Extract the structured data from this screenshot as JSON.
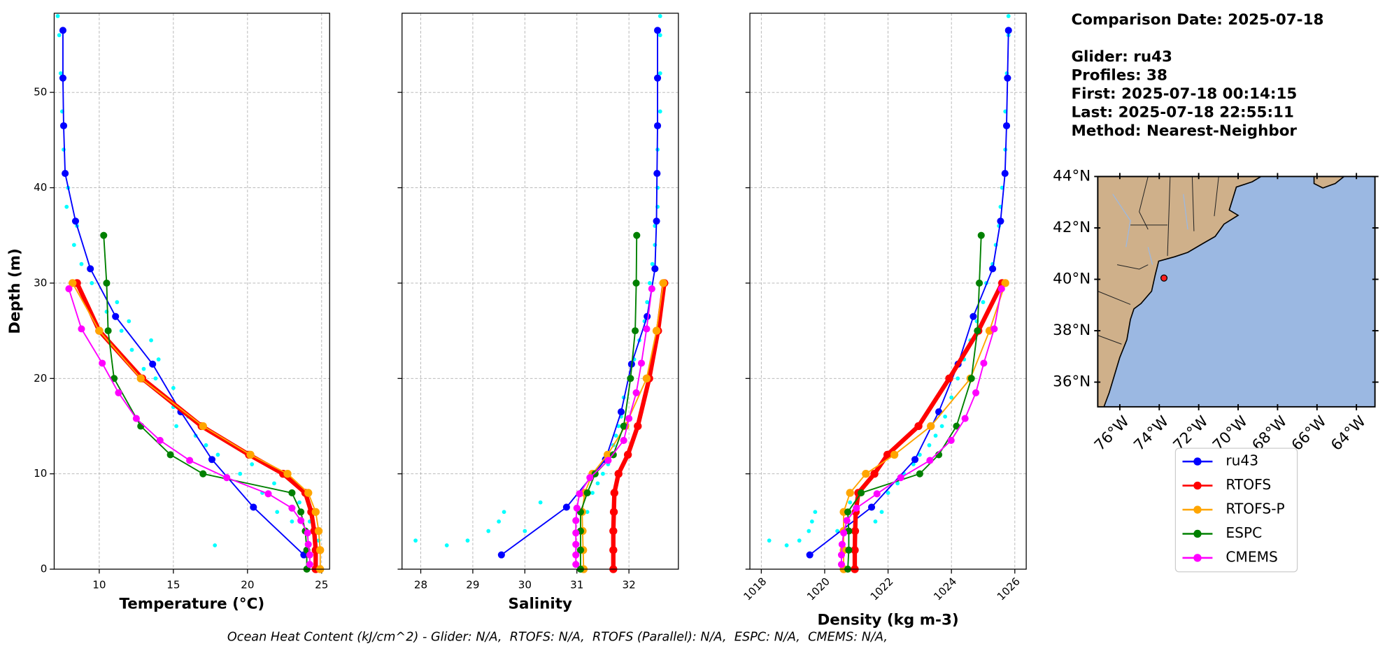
{
  "chart_data": [
    {
      "type": "line",
      "xlabel": "Temperature (°C)",
      "ylabel": "Depth (m)",
      "xlim": [
        6.96,
        25.54
      ],
      "xticks": [
        10,
        15,
        20,
        25
      ],
      "ylim": [
        58.3,
        0
      ],
      "yticks": [
        0,
        10,
        20,
        30,
        40,
        50
      ],
      "grid": true,
      "ytick_labels": true,
      "xtick_rotation": 0,
      "scatter": {
        "color": "#00ffff",
        "depths": [
          2.5,
          3,
          4,
          5,
          5,
          6,
          7,
          8,
          9,
          10,
          11,
          12,
          13,
          14,
          15,
          16,
          17,
          18,
          19,
          20,
          21,
          22,
          23,
          24,
          25,
          26,
          27,
          28,
          30,
          32,
          34,
          36,
          38,
          40,
          44,
          48,
          52,
          56,
          58
        ],
        "values": [
          17.8,
          24.8,
          24.5,
          23.0,
          24.2,
          22.0,
          23.5,
          21.0,
          21.8,
          19.5,
          20.3,
          18.0,
          17.2,
          16.5,
          15.2,
          16.0,
          15.0,
          14.5,
          15.0,
          13.8,
          13.0,
          14.0,
          12.2,
          13.5,
          11.5,
          12.0,
          10.5,
          11.2,
          9.5,
          8.8,
          8.3,
          8.5,
          7.8,
          7.9,
          7.6,
          7.5,
          7.4,
          7.3,
          7.2
        ]
      },
      "series": [
        {
          "name": "ru43",
          "color": "#0000ff",
          "linewidth": 1.5,
          "markersize": 4,
          "depths": [
            1.5,
            6.5,
            11.5,
            16.5,
            21.5,
            26.5,
            31.5,
            36.5,
            41.5,
            46.5,
            51.5,
            56.5
          ],
          "values": [
            23.8,
            20.4,
            17.6,
            15.5,
            13.6,
            11.1,
            9.4,
            8.4,
            7.7,
            7.6,
            7.55,
            7.55
          ]
        },
        {
          "name": "RTOFS",
          "color": "#ff0000",
          "linewidth": 5,
          "markersize": 4.5,
          "depths": [
            0,
            2,
            4,
            6,
            8,
            10,
            12,
            15,
            20,
            25,
            30
          ],
          "values": [
            24.6,
            24.6,
            24.5,
            24.3,
            23.9,
            22.4,
            20.1,
            16.9,
            12.9,
            10.0,
            8.5
          ]
        },
        {
          "name": "RTOFS-P",
          "color": "#ffa500",
          "linewidth": 1.5,
          "markersize": 4.5,
          "depths": [
            0,
            2,
            4,
            6,
            8,
            10,
            12,
            15,
            20,
            25,
            30
          ],
          "values": [
            24.9,
            24.9,
            24.8,
            24.6,
            24.1,
            22.7,
            20.2,
            17.0,
            12.8,
            10.0,
            8.2
          ]
        },
        {
          "name": "ESPC",
          "color": "#008000",
          "linewidth": 1.5,
          "markersize": 4,
          "depths": [
            0,
            2,
            4,
            6,
            8,
            10,
            12,
            15,
            20,
            25,
            30,
            35
          ],
          "values": [
            24.0,
            24.0,
            23.9,
            23.6,
            23.0,
            17.0,
            14.8,
            12.8,
            11.0,
            10.6,
            10.5,
            10.3
          ]
        },
        {
          "name": "CMEMS",
          "color": "#ff00ff",
          "linewidth": 1.5,
          "markersize": 4,
          "depths": [
            0.5,
            1.5,
            2.6,
            3.8,
            5.1,
            6.4,
            7.9,
            9.6,
            11.4,
            13.5,
            15.8,
            18.5,
            21.6,
            25.2,
            29.4
          ],
          "values": [
            24.2,
            24.2,
            24.1,
            24.05,
            23.6,
            23.0,
            21.4,
            18.6,
            16.1,
            14.1,
            12.5,
            11.3,
            10.2,
            8.8,
            7.95
          ]
        }
      ]
    },
    {
      "type": "line",
      "xlabel": "Salinity",
      "xlim": [
        27.64,
        32.95
      ],
      "xticks": [
        28,
        29,
        30,
        31,
        32
      ],
      "ylim": [
        58.3,
        0
      ],
      "yticks": [
        0,
        10,
        20,
        30,
        40,
        50
      ],
      "grid": true,
      "ytick_labels": false,
      "xtick_rotation": 0,
      "scatter": {
        "color": "#00ffff",
        "depths": [
          3,
          2.5,
          3,
          4,
          5,
          6,
          4,
          7,
          5,
          6,
          8,
          9,
          10,
          11,
          12,
          13,
          14,
          15,
          16,
          18,
          20,
          22,
          24,
          26,
          28,
          30,
          32,
          34,
          36,
          38,
          40,
          44,
          48,
          52,
          56,
          58
        ],
        "values": [
          27.9,
          28.5,
          28.9,
          29.3,
          29.5,
          29.6,
          30.0,
          30.3,
          31.0,
          31.2,
          31.3,
          31.4,
          31.5,
          31.6,
          31.6,
          31.7,
          31.75,
          31.8,
          31.85,
          31.9,
          32.0,
          32.1,
          32.2,
          32.3,
          32.35,
          32.4,
          32.45,
          32.5,
          32.5,
          32.55,
          32.55,
          32.55,
          32.6,
          32.6,
          32.6,
          32.6
        ]
      },
      "series": [
        {
          "color": "#0000ff",
          "linewidth": 1.5,
          "markersize": 4,
          "depths": [
            1.5,
            6.5,
            11.5,
            16.5,
            21.5,
            26.5,
            31.5,
            36.5,
            41.5,
            46.5,
            51.5,
            56.5
          ],
          "values": [
            29.55,
            30.8,
            31.55,
            31.85,
            32.05,
            32.35,
            32.5,
            32.53,
            32.54,
            32.55,
            32.55,
            32.55
          ]
        },
        {
          "color": "#ff0000",
          "linewidth": 5,
          "markersize": 4.5,
          "depths": [
            0,
            2,
            4,
            6,
            8,
            10,
            12,
            15,
            20,
            25,
            30
          ],
          "values": [
            31.7,
            31.7,
            31.7,
            31.71,
            31.72,
            31.8,
            31.98,
            32.17,
            32.39,
            32.56,
            32.68
          ]
        },
        {
          "color": "#ffa500",
          "linewidth": 1.5,
          "markersize": 4.5,
          "depths": [
            0,
            2,
            4,
            6,
            8,
            10,
            12,
            15,
            20,
            25,
            30
          ],
          "values": [
            31.13,
            31.12,
            31.11,
            31.1,
            31.15,
            31.3,
            31.59,
            31.93,
            32.34,
            32.53,
            32.66
          ]
        },
        {
          "color": "#008000",
          "linewidth": 1.5,
          "markersize": 4,
          "depths": [
            0,
            2,
            4,
            6,
            8,
            10,
            12,
            15,
            20,
            25,
            30,
            35
          ],
          "values": [
            31.07,
            31.07,
            31.07,
            31.07,
            31.2,
            31.35,
            31.7,
            31.9,
            32.03,
            32.12,
            32.14,
            32.15
          ]
        },
        {
          "color": "#ff00ff",
          "linewidth": 1.5,
          "markersize": 4,
          "depths": [
            0.5,
            1.5,
            2.6,
            3.8,
            5.1,
            6.4,
            7.9,
            9.6,
            11.4,
            13.5,
            15.8,
            18.5,
            21.6,
            25.2,
            29.4
          ],
          "values": [
            30.98,
            30.98,
            30.98,
            30.98,
            30.98,
            31.0,
            31.05,
            31.25,
            31.6,
            31.9,
            32.0,
            32.14,
            32.24,
            32.34,
            32.44
          ]
        }
      ]
    },
    {
      "type": "line",
      "xlabel": "Density (kg m-3)",
      "xlim": [
        1017.64,
        1026.36
      ],
      "xticks": [
        1018,
        1020,
        1022,
        1024,
        1026
      ],
      "ylim": [
        58.3,
        0
      ],
      "yticks": [
        0,
        10,
        20,
        30,
        40,
        50
      ],
      "grid": true,
      "ytick_labels": false,
      "xtick_rotation": 45,
      "scatter": {
        "color": "#00ffff",
        "depths": [
          3,
          2.5,
          3,
          4,
          5,
          6,
          4,
          7,
          5,
          6,
          8,
          9,
          10,
          11,
          12,
          13,
          14,
          15,
          16,
          18,
          20,
          22,
          24,
          26,
          28,
          30,
          32,
          34,
          36,
          38,
          40,
          44,
          48,
          52,
          56,
          58
        ],
        "values": [
          1018.25,
          1018.8,
          1019.2,
          1019.5,
          1019.6,
          1019.7,
          1020.4,
          1020.8,
          1021.6,
          1021.8,
          1022.0,
          1022.3,
          1022.5,
          1022.8,
          1023.0,
          1023.3,
          1023.5,
          1023.7,
          1023.8,
          1024.0,
          1024.2,
          1024.4,
          1024.6,
          1024.8,
          1025.0,
          1025.1,
          1025.3,
          1025.4,
          1025.5,
          1025.55,
          1025.6,
          1025.7,
          1025.7,
          1025.75,
          1025.8,
          1025.8
        ]
      },
      "series": [
        {
          "color": "#0000ff",
          "linewidth": 1.5,
          "markersize": 4,
          "depths": [
            1.5,
            6.5,
            11.5,
            16.5,
            21.5,
            26.5,
            31.5,
            36.5,
            41.5,
            46.5,
            51.5,
            56.5
          ],
          "values": [
            1019.53,
            1021.48,
            1022.85,
            1023.6,
            1024.21,
            1024.69,
            1025.3,
            1025.55,
            1025.69,
            1025.74,
            1025.77,
            1025.8
          ]
        },
        {
          "color": "#ff0000",
          "linewidth": 5,
          "markersize": 4.5,
          "depths": [
            0,
            2,
            4,
            6,
            8,
            10,
            12,
            15,
            20,
            25,
            30
          ],
          "values": [
            1020.95,
            1020.95,
            1020.96,
            1020.98,
            1021.06,
            1021.57,
            1021.98,
            1022.96,
            1023.93,
            1024.85,
            1025.6
          ]
        },
        {
          "color": "#ffa500",
          "linewidth": 1.5,
          "markersize": 4.5,
          "depths": [
            0,
            2,
            4,
            6,
            8,
            10,
            12,
            15,
            20,
            25,
            30
          ],
          "values": [
            1020.6,
            1020.6,
            1020.6,
            1020.6,
            1020.8,
            1021.3,
            1022.2,
            1023.35,
            1024.6,
            1025.2,
            1025.7
          ]
        },
        {
          "color": "#008000",
          "linewidth": 1.5,
          "markersize": 4,
          "depths": [
            0,
            2,
            4,
            6,
            8,
            10,
            12,
            15,
            20,
            25,
            30,
            35
          ],
          "values": [
            1020.73,
            1020.76,
            1020.76,
            1020.73,
            1021.15,
            1023.0,
            1023.6,
            1024.16,
            1024.63,
            1024.82,
            1024.88,
            1024.94
          ]
        },
        {
          "color": "#ff00ff",
          "linewidth": 1.5,
          "markersize": 4,
          "depths": [
            0.5,
            1.5,
            2.6,
            3.8,
            5.1,
            6.4,
            7.9,
            9.6,
            11.4,
            13.5,
            15.8,
            18.5,
            21.6,
            25.2,
            29.4
          ],
          "values": [
            1020.53,
            1020.53,
            1020.55,
            1020.6,
            1020.7,
            1021.0,
            1021.65,
            1022.4,
            1023.32,
            1023.99,
            1024.43,
            1024.77,
            1025.02,
            1025.35,
            1025.58
          ]
        }
      ]
    },
    {
      "type": "map",
      "land_color": "#cfb08a",
      "ocean_color": "#9bb8e2",
      "xlim": [
        -77.12,
        -63.06
      ],
      "ylim": [
        35.04,
        44.0
      ],
      "xtick_rotation": 45,
      "xticks": [
        {
          "value": -76,
          "label": "76°W"
        },
        {
          "value": -74,
          "label": "74°W"
        },
        {
          "value": -72,
          "label": "72°W"
        },
        {
          "value": -70,
          "label": "70°W"
        },
        {
          "value": -68,
          "label": "68°W"
        },
        {
          "value": -66,
          "label": "66°W"
        },
        {
          "value": -64,
          "label": "64°W"
        }
      ],
      "yticks": [
        {
          "value": 36,
          "label": "36°N"
        },
        {
          "value": 38,
          "label": "38°N"
        },
        {
          "value": 40,
          "label": "40°N"
        },
        {
          "value": 42,
          "label": "42°N"
        },
        {
          "value": 44,
          "label": "44°N"
        }
      ],
      "points": {
        "color": "#ff2020",
        "x": [
          -73.76
        ],
        "y": [
          40.05
        ]
      }
    }
  ],
  "info_lines": [
    "Comparison Date: 2025-07-18",
    "Glider: ru43",
    "Profiles: 38",
    "First: 2025-07-18 00:14:15",
    "Last: 2025-07-18 22:55:11",
    "Method: Nearest-Neighbor"
  ],
  "footer": "Ocean Heat Content (kJ/cm^2) - Glider: N/A,  RTOFS: N/A,  RTOFS (Parallel): N/A,  ESPC: N/A,  CMEMS: N/A,"
}
